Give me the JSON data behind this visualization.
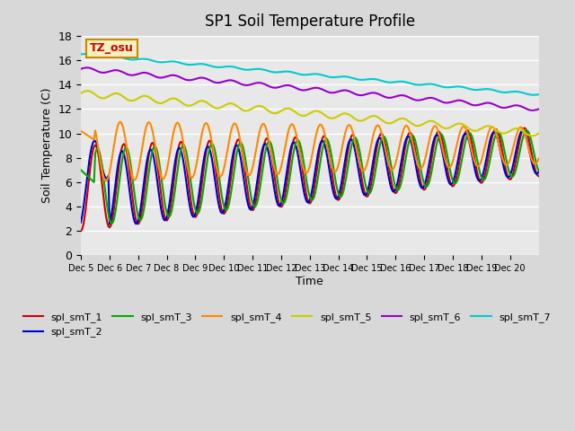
{
  "title": "SP1 Soil Temperature Profile",
  "xlabel": "Time",
  "ylabel": "Soil Temperature (C)",
  "ylim": [
    0,
    18
  ],
  "background_color": "#e8e8e8",
  "fig_bg_color": "#d8d8d8",
  "annotation_text": "TZ_osu",
  "annotation_color": "#cc0000",
  "annotation_bg": "#f5f0c0",
  "annotation_border": "#cc8800",
  "xtick_labels": [
    "Dec 5",
    "Dec 6",
    "Dec 7",
    "Dec 8",
    "Dec 9",
    "Dec 10",
    "Dec 11",
    "Dec 12",
    "Dec 13",
    "Dec 14",
    "Dec 15",
    "Dec 16",
    "Dec 17",
    "Dec 18",
    "Dec 19",
    "Dec 20"
  ],
  "series_colors": {
    "spl_smT_1": "#cc0000",
    "spl_smT_2": "#0000cc",
    "spl_smT_3": "#00aa00",
    "spl_smT_4": "#ff8800",
    "spl_smT_5": "#cccc00",
    "spl_smT_6": "#9900cc",
    "spl_smT_7": "#00cccc"
  },
  "legend_labels": [
    "spl_smT_1",
    "spl_smT_2",
    "spl_smT_3",
    "spl_smT_4",
    "spl_smT_5",
    "spl_smT_6",
    "spl_smT_7"
  ]
}
